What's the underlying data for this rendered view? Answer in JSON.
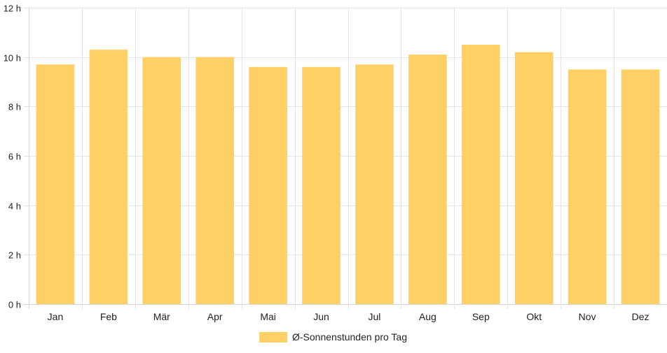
{
  "chart_data": {
    "type": "bar",
    "categories": [
      "Jan",
      "Feb",
      "Mär",
      "Apr",
      "Mai",
      "Jun",
      "Jul",
      "Aug",
      "Sep",
      "Okt",
      "Nov",
      "Dez"
    ],
    "series": [
      {
        "name": "Ø-Sonnenstunden pro Tag",
        "values": [
          9.7,
          10.3,
          10.0,
          10.0,
          9.6,
          9.6,
          9.7,
          10.1,
          10.5,
          10.2,
          9.5,
          9.5
        ],
        "color": "#ffd066"
      }
    ],
    "ylim": [
      0,
      12
    ],
    "yticks": [
      0,
      2,
      4,
      6,
      8,
      10,
      12
    ],
    "ytick_labels": [
      "0 h",
      "2 h",
      "4 h",
      "6 h",
      "8 h",
      "10 h",
      "12 h"
    ],
    "grid": true,
    "legend_position": "bottom"
  }
}
